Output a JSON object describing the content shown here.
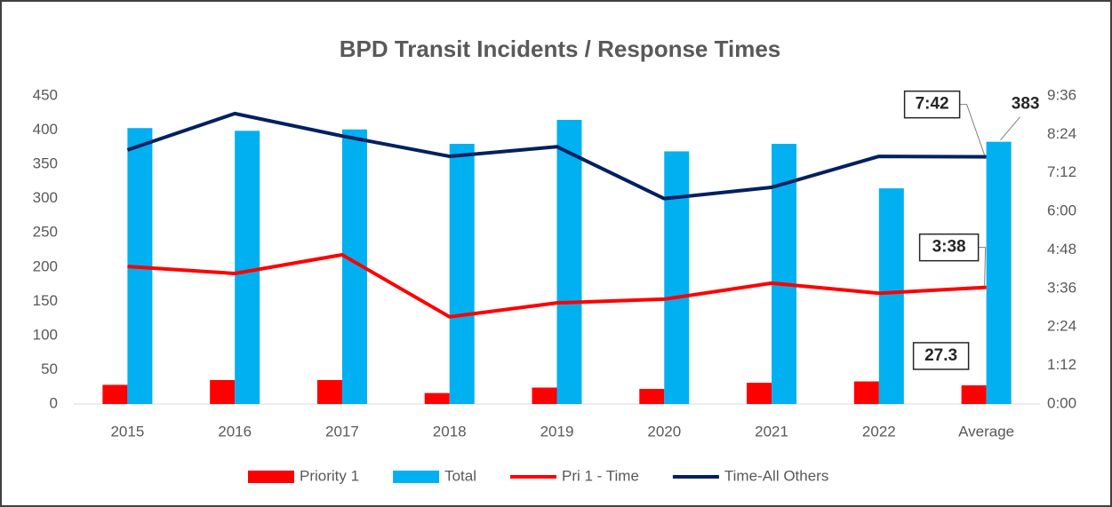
{
  "chart_data": {
    "type": "bar_line",
    "title": "BPD Transit Incidents / Response Times",
    "categories": [
      "2015",
      "2016",
      "2017",
      "2018",
      "2019",
      "2020",
      "2021",
      "2022",
      "Average"
    ],
    "series": [
      {
        "name": "Priority 1",
        "type": "bar",
        "color": "#ff0000",
        "values": [
          28,
          35,
          35,
          16,
          24,
          22,
          31,
          33,
          27.3
        ],
        "value_labels": [
          null,
          null,
          null,
          null,
          null,
          null,
          null,
          null,
          "27.3"
        ]
      },
      {
        "name": "Total",
        "type": "bar",
        "color": "#00b0f0",
        "values": [
          403,
          399,
          401,
          380,
          415,
          369,
          380,
          315,
          383
        ],
        "value_labels": [
          null,
          null,
          null,
          null,
          null,
          null,
          null,
          null,
          "383"
        ]
      },
      {
        "name": "Pri 1 - Time",
        "type": "line",
        "axis": "y2",
        "color": "#ff0000",
        "values": [
          257,
          244,
          279,
          163,
          189,
          196,
          226,
          207,
          218
        ],
        "value_labels": [
          null,
          null,
          null,
          null,
          null,
          null,
          null,
          null,
          "3:38"
        ]
      },
      {
        "name": "Time-All Others",
        "type": "line",
        "axis": "y2",
        "color": "#002060",
        "values": [
          475,
          543,
          501,
          463,
          481,
          384,
          405,
          463,
          462
        ],
        "value_labels": [
          null,
          null,
          null,
          null,
          null,
          null,
          null,
          null,
          "7:42"
        ]
      }
    ],
    "ylim": [
      0,
      450
    ],
    "yticks": [
      0,
      50,
      100,
      150,
      200,
      250,
      300,
      350,
      400,
      450
    ],
    "y2lim": [
      0,
      576
    ],
    "y2ticks": [
      {
        "value": 0,
        "label": "0:00"
      },
      {
        "value": 72,
        "label": "1:12"
      },
      {
        "value": 144,
        "label": "2:24"
      },
      {
        "value": 216,
        "label": "3:36"
      },
      {
        "value": 288,
        "label": "4:48"
      },
      {
        "value": 360,
        "label": "6:00"
      },
      {
        "value": 432,
        "label": "7:12"
      },
      {
        "value": 504,
        "label": "8:24"
      },
      {
        "value": 576,
        "label": "9:36"
      }
    ],
    "grid": false,
    "legend": "bottom"
  }
}
